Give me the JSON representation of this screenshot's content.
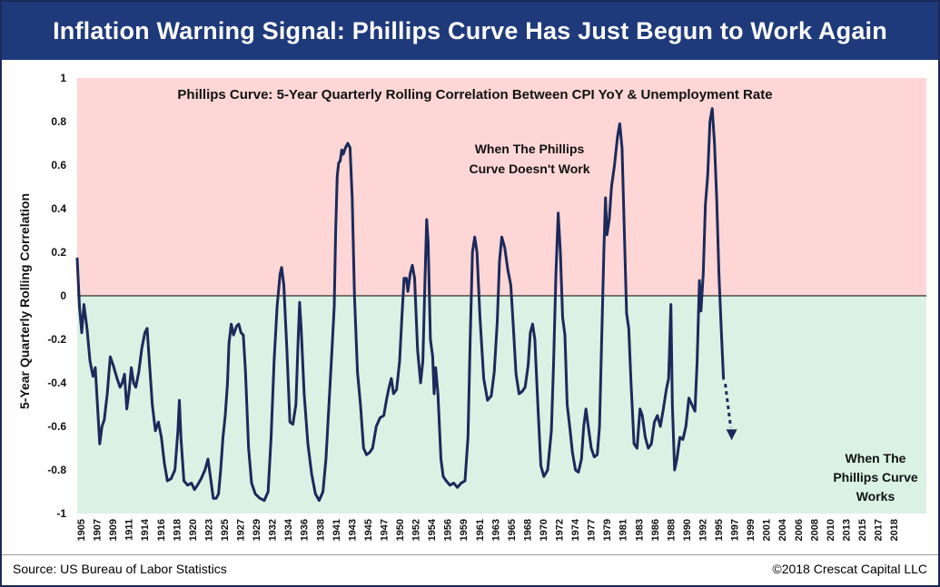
{
  "header": {
    "title": "Inflation Warning Signal: Phillips Curve Has Just Begun to Work Again"
  },
  "footer": {
    "source": "Source: US Bureau of Labor Statistics",
    "copyright": "©2018 Crescat Capital LLC"
  },
  "colors": {
    "title_bg": "#1f3a7a",
    "line": "#1b2a5a",
    "upper_zone": "#ffd6d6",
    "lower_zone": "#d9f2e4"
  },
  "chart_data": {
    "type": "line",
    "title": "Phillips Curve: 5-Year Quarterly Rolling Correlation Between CPI YoY & Unemployment Rate",
    "ylabel": "5-Year Quarterly Rolling Correlation",
    "xlabel": "",
    "xlim": [
      1905,
      2018
    ],
    "ylim": [
      -1,
      1
    ],
    "yticks": [
      "1",
      "0.8",
      "0.6",
      "0.4",
      "0.2",
      "0",
      "-0.2",
      "-0.4",
      "-0.6",
      "-0.8",
      "-1"
    ],
    "xticks": [
      "1905",
      "1907",
      "1909",
      "1911",
      "1914",
      "1916",
      "1918",
      "1920",
      "1923",
      "1925",
      "1927",
      "1929",
      "1932",
      "1934",
      "1936",
      "1938",
      "1941",
      "1943",
      "1945",
      "1947",
      "1950",
      "1952",
      "1954",
      "1956",
      "1959",
      "1961",
      "1963",
      "1965",
      "1968",
      "1970",
      "1972",
      "1974",
      "1977",
      "1979",
      "1981",
      "1983",
      "1986",
      "1988",
      "1990",
      "1992",
      "1995",
      "1997",
      "1999",
      "2001",
      "2004",
      "2006",
      "2008",
      "2010",
      "2013",
      "2015",
      "2017",
      "2018"
    ],
    "annotations": {
      "upper": "When The Phillips Curve Doesn't Work",
      "lower": "When The Phillips Curve Works"
    },
    "series": [
      {
        "values": [
          [
            1905.0,
            0.17
          ],
          [
            1905.3,
            -0.05
          ],
          [
            1905.6,
            -0.17
          ],
          [
            1905.9,
            -0.04
          ],
          [
            1906.3,
            -0.15
          ],
          [
            1906.7,
            -0.3
          ],
          [
            1907.1,
            -0.37
          ],
          [
            1907.4,
            -0.33
          ],
          [
            1907.7,
            -0.5
          ],
          [
            1908.0,
            -0.68
          ],
          [
            1908.3,
            -0.6
          ],
          [
            1908.6,
            -0.57
          ],
          [
            1909.0,
            -0.45
          ],
          [
            1909.4,
            -0.28
          ],
          [
            1909.8,
            -0.32
          ],
          [
            1910.3,
            -0.38
          ],
          [
            1910.7,
            -0.42
          ],
          [
            1911.0,
            -0.4
          ],
          [
            1911.3,
            -0.36
          ],
          [
            1911.6,
            -0.52
          ],
          [
            1911.9,
            -0.44
          ],
          [
            1912.2,
            -0.33
          ],
          [
            1912.5,
            -0.4
          ],
          [
            1912.8,
            -0.42
          ],
          [
            1913.2,
            -0.35
          ],
          [
            1913.6,
            -0.24
          ],
          [
            1914.0,
            -0.17
          ],
          [
            1914.3,
            -0.15
          ],
          [
            1914.6,
            -0.3
          ],
          [
            1915.0,
            -0.5
          ],
          [
            1915.4,
            -0.62
          ],
          [
            1915.8,
            -0.58
          ],
          [
            1916.2,
            -0.65
          ],
          [
            1916.6,
            -0.77
          ],
          [
            1917.0,
            -0.85
          ],
          [
            1917.5,
            -0.84
          ],
          [
            1918.0,
            -0.8
          ],
          [
            1918.4,
            -0.62
          ],
          [
            1918.6,
            -0.48
          ],
          [
            1918.8,
            -0.65
          ],
          [
            1919.2,
            -0.85
          ],
          [
            1919.7,
            -0.87
          ],
          [
            1920.2,
            -0.86
          ],
          [
            1920.6,
            -0.89
          ],
          [
            1921.0,
            -0.87
          ],
          [
            1921.5,
            -0.84
          ],
          [
            1922.0,
            -0.8
          ],
          [
            1922.4,
            -0.75
          ],
          [
            1922.8,
            -0.85
          ],
          [
            1923.1,
            -0.93
          ],
          [
            1923.5,
            -0.93
          ],
          [
            1923.8,
            -0.91
          ],
          [
            1924.1,
            -0.8
          ],
          [
            1924.4,
            -0.65
          ],
          [
            1924.7,
            -0.55
          ],
          [
            1925.0,
            -0.4
          ],
          [
            1925.2,
            -0.22
          ],
          [
            1925.5,
            -0.13
          ],
          [
            1925.8,
            -0.18
          ],
          [
            1926.2,
            -0.14
          ],
          [
            1926.5,
            -0.13
          ],
          [
            1926.8,
            -0.17
          ],
          [
            1927.1,
            -0.18
          ],
          [
            1927.4,
            -0.35
          ],
          [
            1927.8,
            -0.7
          ],
          [
            1928.2,
            -0.86
          ],
          [
            1928.7,
            -0.91
          ],
          [
            1929.3,
            -0.93
          ],
          [
            1929.9,
            -0.94
          ],
          [
            1930.4,
            -0.9
          ],
          [
            1930.8,
            -0.65
          ],
          [
            1931.2,
            -0.3
          ],
          [
            1931.6,
            -0.05
          ],
          [
            1932.0,
            0.1
          ],
          [
            1932.2,
            0.13
          ],
          [
            1932.5,
            0.05
          ],
          [
            1932.9,
            -0.25
          ],
          [
            1933.3,
            -0.58
          ],
          [
            1933.7,
            -0.59
          ],
          [
            1934.1,
            -0.5
          ],
          [
            1934.4,
            -0.2
          ],
          [
            1934.6,
            -0.03
          ],
          [
            1934.8,
            -0.15
          ],
          [
            1935.2,
            -0.45
          ],
          [
            1935.7,
            -0.68
          ],
          [
            1936.2,
            -0.82
          ],
          [
            1936.7,
            -0.91
          ],
          [
            1937.2,
            -0.94
          ],
          [
            1937.7,
            -0.9
          ],
          [
            1938.1,
            -0.75
          ],
          [
            1938.5,
            -0.5
          ],
          [
            1938.9,
            -0.25
          ],
          [
            1939.2,
            -0.05
          ],
          [
            1939.4,
            0.3
          ],
          [
            1939.6,
            0.55
          ],
          [
            1939.8,
            0.61
          ],
          [
            1940.0,
            0.62
          ],
          [
            1940.2,
            0.67
          ],
          [
            1940.4,
            0.65
          ],
          [
            1940.7,
            0.68
          ],
          [
            1941.0,
            0.7
          ],
          [
            1941.3,
            0.68
          ],
          [
            1941.6,
            0.45
          ],
          [
            1941.9,
            0.0
          ],
          [
            1942.3,
            -0.35
          ],
          [
            1942.7,
            -0.5
          ],
          [
            1943.1,
            -0.7
          ],
          [
            1943.5,
            -0.73
          ],
          [
            1943.9,
            -0.72
          ],
          [
            1944.3,
            -0.7
          ],
          [
            1944.8,
            -0.6
          ],
          [
            1945.3,
            -0.56
          ],
          [
            1945.8,
            -0.55
          ],
          [
            1946.2,
            -0.47
          ],
          [
            1946.5,
            -0.42
          ],
          [
            1946.8,
            -0.38
          ],
          [
            1947.1,
            -0.45
          ],
          [
            1947.5,
            -0.43
          ],
          [
            1947.9,
            -0.3
          ],
          [
            1948.2,
            -0.1
          ],
          [
            1948.5,
            0.08
          ],
          [
            1948.8,
            0.08
          ],
          [
            1949.0,
            0.02
          ],
          [
            1949.3,
            0.1
          ],
          [
            1949.6,
            0.14
          ],
          [
            1949.9,
            0.08
          ],
          [
            1950.3,
            -0.25
          ],
          [
            1950.7,
            -0.4
          ],
          [
            1951.0,
            -0.3
          ],
          [
            1951.3,
            0.1
          ],
          [
            1951.5,
            0.35
          ],
          [
            1951.7,
            0.25
          ],
          [
            1952.0,
            -0.2
          ],
          [
            1952.3,
            -0.28
          ],
          [
            1952.5,
            -0.45
          ],
          [
            1952.7,
            -0.33
          ],
          [
            1953.0,
            -0.45
          ],
          [
            1953.4,
            -0.75
          ],
          [
            1953.7,
            -0.83
          ],
          [
            1954.1,
            -0.85
          ],
          [
            1954.6,
            -0.87
          ],
          [
            1955.1,
            -0.86
          ],
          [
            1955.6,
            -0.88
          ],
          [
            1956.1,
            -0.86
          ],
          [
            1956.6,
            -0.85
          ],
          [
            1957.0,
            -0.65
          ],
          [
            1957.3,
            -0.2
          ],
          [
            1957.6,
            0.2
          ],
          [
            1957.9,
            0.27
          ],
          [
            1958.2,
            0.2
          ],
          [
            1958.6,
            -0.1
          ],
          [
            1959.1,
            -0.38
          ],
          [
            1959.6,
            -0.48
          ],
          [
            1960.1,
            -0.46
          ],
          [
            1960.5,
            -0.35
          ],
          [
            1960.9,
            -0.12
          ],
          [
            1961.2,
            0.16
          ],
          [
            1961.5,
            0.27
          ],
          [
            1961.9,
            0.22
          ],
          [
            1962.3,
            0.12
          ],
          [
            1962.7,
            0.05
          ],
          [
            1963.0,
            -0.12
          ],
          [
            1963.4,
            -0.36
          ],
          [
            1963.8,
            -0.45
          ],
          [
            1964.2,
            -0.44
          ],
          [
            1964.6,
            -0.42
          ],
          [
            1965.0,
            -0.32
          ],
          [
            1965.3,
            -0.17
          ],
          [
            1965.6,
            -0.13
          ],
          [
            1965.9,
            -0.2
          ],
          [
            1966.3,
            -0.5
          ],
          [
            1966.7,
            -0.78
          ],
          [
            1967.1,
            -0.83
          ],
          [
            1967.6,
            -0.8
          ],
          [
            1968.1,
            -0.62
          ],
          [
            1968.4,
            -0.3
          ],
          [
            1968.7,
            0.1
          ],
          [
            1969.0,
            0.38
          ],
          [
            1969.3,
            0.2
          ],
          [
            1969.6,
            -0.1
          ],
          [
            1969.9,
            -0.18
          ],
          [
            1970.2,
            -0.5
          ],
          [
            1970.6,
            -0.62
          ],
          [
            1970.9,
            -0.72
          ],
          [
            1971.3,
            -0.8
          ],
          [
            1971.7,
            -0.81
          ],
          [
            1972.1,
            -0.75
          ],
          [
            1972.4,
            -0.6
          ],
          [
            1972.7,
            -0.52
          ],
          [
            1973.0,
            -0.6
          ],
          [
            1973.4,
            -0.7
          ],
          [
            1973.8,
            -0.74
          ],
          [
            1974.2,
            -0.73
          ],
          [
            1974.5,
            -0.6
          ],
          [
            1974.8,
            -0.2
          ],
          [
            1975.1,
            0.22
          ],
          [
            1975.3,
            0.45
          ],
          [
            1975.5,
            0.28
          ],
          [
            1975.8,
            0.35
          ],
          [
            1976.1,
            0.5
          ],
          [
            1976.5,
            0.6
          ],
          [
            1976.9,
            0.73
          ],
          [
            1977.2,
            0.79
          ],
          [
            1977.5,
            0.68
          ],
          [
            1977.8,
            0.3
          ],
          [
            1978.1,
            -0.08
          ],
          [
            1978.4,
            -0.15
          ],
          [
            1978.7,
            -0.4
          ],
          [
            1979.1,
            -0.68
          ],
          [
            1979.5,
            -0.7
          ],
          [
            1979.9,
            -0.52
          ],
          [
            1980.2,
            -0.55
          ],
          [
            1980.6,
            -0.65
          ],
          [
            1981.0,
            -0.7
          ],
          [
            1981.4,
            -0.68
          ],
          [
            1981.8,
            -0.58
          ],
          [
            1982.2,
            -0.55
          ],
          [
            1982.6,
            -0.6
          ],
          [
            1983.0,
            -0.52
          ],
          [
            1983.4,
            -0.43
          ],
          [
            1983.7,
            -0.38
          ],
          [
            1984.0,
            -0.04
          ],
          [
            1984.2,
            -0.5
          ],
          [
            1984.5,
            -0.8
          ],
          [
            1984.8,
            -0.75
          ],
          [
            1985.2,
            -0.65
          ],
          [
            1985.6,
            -0.66
          ],
          [
            1986.0,
            -0.6
          ],
          [
            1986.4,
            -0.47
          ],
          [
            1986.8,
            -0.5
          ],
          [
            1987.2,
            -0.53
          ],
          [
            1987.5,
            -0.3
          ],
          [
            1987.8,
            0.07
          ],
          [
            1988.0,
            -0.07
          ],
          [
            1988.3,
            0.1
          ],
          [
            1988.6,
            0.42
          ],
          [
            1988.9,
            0.55
          ],
          [
            1989.2,
            0.8
          ],
          [
            1989.5,
            0.86
          ],
          [
            1989.8,
            0.7
          ],
          [
            1990.1,
            0.45
          ],
          [
            1990.4,
            0.1
          ],
          [
            1990.7,
            -0.15
          ],
          [
            1991.0,
            -0.38
          ]
        ]
      }
    ]
  }
}
